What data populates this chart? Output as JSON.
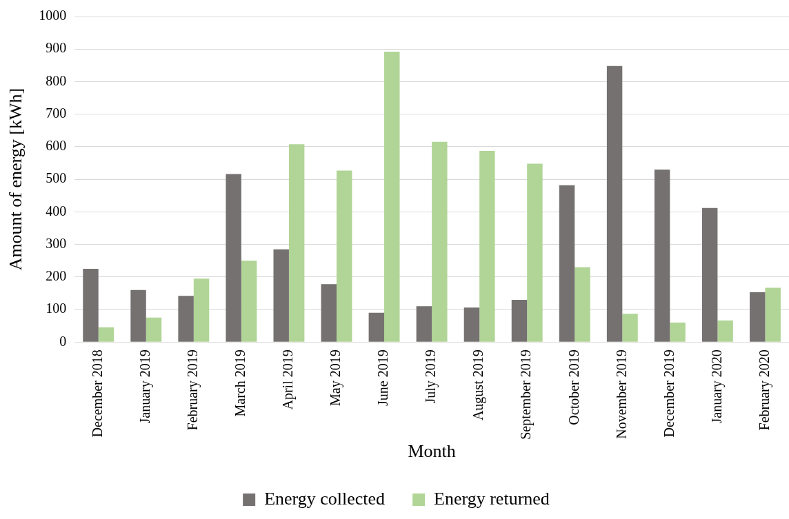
{
  "chart_data": {
    "type": "bar",
    "xlabel": "Month",
    "ylabel": "Amount of energy [kWh]",
    "categories": [
      "December 2018",
      "January 2019",
      "February 2019",
      "March 2019",
      "April 2019",
      "May 2019",
      "June 2019",
      "July 2019",
      "August 2019",
      "September 2019",
      "October 2019",
      "November 2019",
      "December 2019",
      "January 2020",
      "February 2020"
    ],
    "series": [
      {
        "name": "Energy collected",
        "color": "#767171",
        "values": [
          225,
          160,
          142,
          516,
          285,
          178,
          90,
          110,
          106,
          130,
          482,
          848,
          530,
          412,
          153
        ]
      },
      {
        "name": "Energy returned",
        "color": "#b0d596",
        "values": [
          45,
          75,
          195,
          250,
          608,
          527,
          892,
          615,
          587,
          548,
          230,
          87,
          60,
          66,
          167
        ]
      }
    ],
    "ylim": [
      0,
      1000
    ],
    "yticks": [
      0,
      100,
      200,
      300,
      400,
      500,
      600,
      700,
      800,
      900,
      1000
    ],
    "grid": "y",
    "legend": "bottom"
  }
}
